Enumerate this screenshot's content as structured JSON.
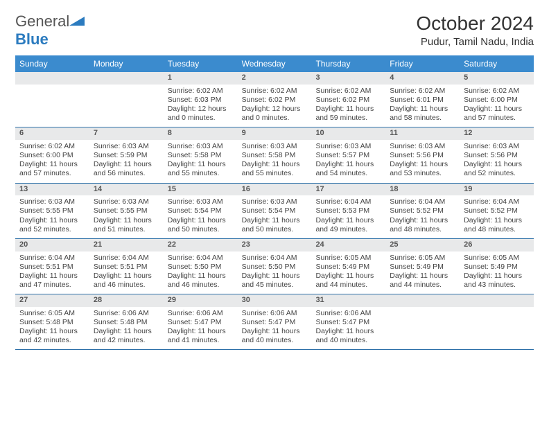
{
  "logo": {
    "text_general": "General",
    "text_blue": "Blue"
  },
  "header": {
    "month_title": "October 2024",
    "location": "Pudur, Tamil Nadu, India"
  },
  "colors": {
    "header_bg": "#3b8bce",
    "header_text": "#ffffff",
    "daynum_bg": "#e8e9ea",
    "border": "#2b6fa8",
    "body_text": "#444444",
    "logo_blue": "#2b7bbf"
  },
  "day_names": [
    "Sunday",
    "Monday",
    "Tuesday",
    "Wednesday",
    "Thursday",
    "Friday",
    "Saturday"
  ],
  "weeks": [
    [
      null,
      null,
      {
        "n": "1",
        "sr": "6:02 AM",
        "ss": "6:03 PM",
        "dl": "12 hours and 0 minutes."
      },
      {
        "n": "2",
        "sr": "6:02 AM",
        "ss": "6:02 PM",
        "dl": "12 hours and 0 minutes."
      },
      {
        "n": "3",
        "sr": "6:02 AM",
        "ss": "6:02 PM",
        "dl": "11 hours and 59 minutes."
      },
      {
        "n": "4",
        "sr": "6:02 AM",
        "ss": "6:01 PM",
        "dl": "11 hours and 58 minutes."
      },
      {
        "n": "5",
        "sr": "6:02 AM",
        "ss": "6:00 PM",
        "dl": "11 hours and 57 minutes."
      }
    ],
    [
      {
        "n": "6",
        "sr": "6:02 AM",
        "ss": "6:00 PM",
        "dl": "11 hours and 57 minutes."
      },
      {
        "n": "7",
        "sr": "6:03 AM",
        "ss": "5:59 PM",
        "dl": "11 hours and 56 minutes."
      },
      {
        "n": "8",
        "sr": "6:03 AM",
        "ss": "5:58 PM",
        "dl": "11 hours and 55 minutes."
      },
      {
        "n": "9",
        "sr": "6:03 AM",
        "ss": "5:58 PM",
        "dl": "11 hours and 55 minutes."
      },
      {
        "n": "10",
        "sr": "6:03 AM",
        "ss": "5:57 PM",
        "dl": "11 hours and 54 minutes."
      },
      {
        "n": "11",
        "sr": "6:03 AM",
        "ss": "5:56 PM",
        "dl": "11 hours and 53 minutes."
      },
      {
        "n": "12",
        "sr": "6:03 AM",
        "ss": "5:56 PM",
        "dl": "11 hours and 52 minutes."
      }
    ],
    [
      {
        "n": "13",
        "sr": "6:03 AM",
        "ss": "5:55 PM",
        "dl": "11 hours and 52 minutes."
      },
      {
        "n": "14",
        "sr": "6:03 AM",
        "ss": "5:55 PM",
        "dl": "11 hours and 51 minutes."
      },
      {
        "n": "15",
        "sr": "6:03 AM",
        "ss": "5:54 PM",
        "dl": "11 hours and 50 minutes."
      },
      {
        "n": "16",
        "sr": "6:03 AM",
        "ss": "5:54 PM",
        "dl": "11 hours and 50 minutes."
      },
      {
        "n": "17",
        "sr": "6:04 AM",
        "ss": "5:53 PM",
        "dl": "11 hours and 49 minutes."
      },
      {
        "n": "18",
        "sr": "6:04 AM",
        "ss": "5:52 PM",
        "dl": "11 hours and 48 minutes."
      },
      {
        "n": "19",
        "sr": "6:04 AM",
        "ss": "5:52 PM",
        "dl": "11 hours and 48 minutes."
      }
    ],
    [
      {
        "n": "20",
        "sr": "6:04 AM",
        "ss": "5:51 PM",
        "dl": "11 hours and 47 minutes."
      },
      {
        "n": "21",
        "sr": "6:04 AM",
        "ss": "5:51 PM",
        "dl": "11 hours and 46 minutes."
      },
      {
        "n": "22",
        "sr": "6:04 AM",
        "ss": "5:50 PM",
        "dl": "11 hours and 46 minutes."
      },
      {
        "n": "23",
        "sr": "6:04 AM",
        "ss": "5:50 PM",
        "dl": "11 hours and 45 minutes."
      },
      {
        "n": "24",
        "sr": "6:05 AM",
        "ss": "5:49 PM",
        "dl": "11 hours and 44 minutes."
      },
      {
        "n": "25",
        "sr": "6:05 AM",
        "ss": "5:49 PM",
        "dl": "11 hours and 44 minutes."
      },
      {
        "n": "26",
        "sr": "6:05 AM",
        "ss": "5:49 PM",
        "dl": "11 hours and 43 minutes."
      }
    ],
    [
      {
        "n": "27",
        "sr": "6:05 AM",
        "ss": "5:48 PM",
        "dl": "11 hours and 42 minutes."
      },
      {
        "n": "28",
        "sr": "6:06 AM",
        "ss": "5:48 PM",
        "dl": "11 hours and 42 minutes."
      },
      {
        "n": "29",
        "sr": "6:06 AM",
        "ss": "5:47 PM",
        "dl": "11 hours and 41 minutes."
      },
      {
        "n": "30",
        "sr": "6:06 AM",
        "ss": "5:47 PM",
        "dl": "11 hours and 40 minutes."
      },
      {
        "n": "31",
        "sr": "6:06 AM",
        "ss": "5:47 PM",
        "dl": "11 hours and 40 minutes."
      },
      null,
      null
    ]
  ],
  "labels": {
    "sunrise": "Sunrise:",
    "sunset": "Sunset:",
    "daylight": "Daylight:"
  }
}
